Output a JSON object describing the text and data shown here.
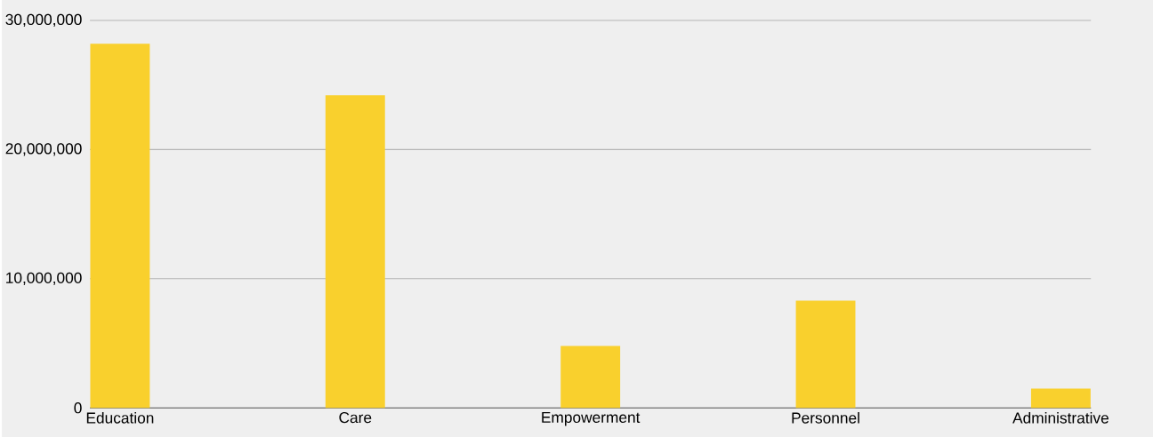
{
  "chart_data": {
    "type": "bar",
    "categories": [
      "Education",
      "Care",
      "Empowerment",
      "Personnel",
      "Administrative"
    ],
    "values": [
      28200000,
      24200000,
      4800000,
      8300000,
      1500000
    ],
    "color": "#f9d02d",
    "ylim": [
      0,
      30000000
    ],
    "yticks": [
      {
        "value": 0,
        "label": "0"
      },
      {
        "value": 10000000,
        "label": "10,000,000"
      },
      {
        "value": 20000000,
        "label": "20,000,000"
      },
      {
        "value": 30000000,
        "label": "30,000,000"
      }
    ],
    "grid": "y"
  }
}
